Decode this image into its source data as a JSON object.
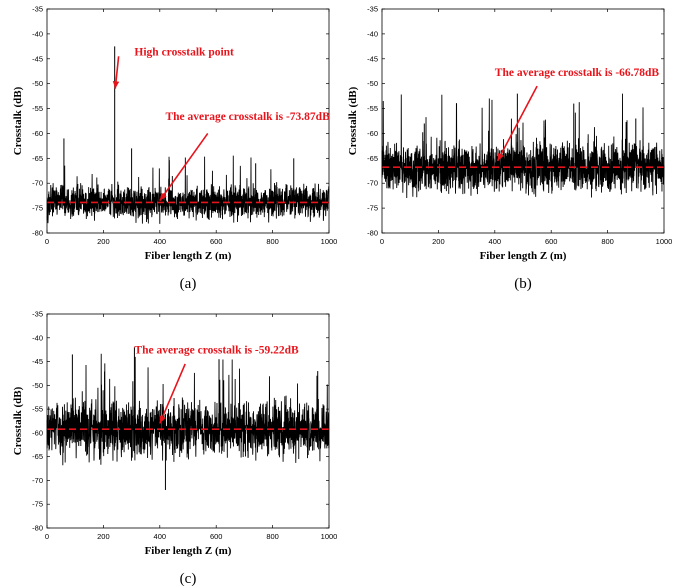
{
  "chart_data": [
    {
      "id": "a",
      "type": "line",
      "panel_label": "(a)",
      "xlabel": "Fiber length Z (m)",
      "ylabel": "Crosstalk (dB)",
      "xlim": [
        0,
        1000
      ],
      "ylim": [
        -80,
        -35
      ],
      "xticks": [
        0,
        200,
        400,
        600,
        800,
        1000
      ],
      "yticks": [
        -35,
        -40,
        -45,
        -50,
        -55,
        -60,
        -65,
        -70,
        -75,
        -80
      ],
      "noise": {
        "mean": -73.87,
        "spread": 3.4,
        "min_clip": -79.5
      },
      "spikes": [
        {
          "x": 240,
          "y": -42.5
        },
        {
          "x": 60,
          "y": -61
        },
        {
          "x": 300,
          "y": -63
        },
        {
          "x": 875,
          "y": -65
        },
        {
          "x": 740,
          "y": -66
        }
      ],
      "average": -73.87,
      "annotations": [
        {
          "text": "High crosstalk point",
          "tx": 310,
          "ty": -44.3,
          "ax": 254,
          "ay": -44.5,
          "bx": 242,
          "by": -51
        },
        {
          "text": "The average crosstalk is -73.87dB",
          "tx": 420,
          "ty": -57.3,
          "ax": 570,
          "ay": -60,
          "bx": 400,
          "by": -73.5
        }
      ]
    },
    {
      "id": "b",
      "type": "line",
      "panel_label": "(b)",
      "xlabel": "Fiber length Z (m)",
      "ylabel": "Crosstalk (dB)",
      "xlim": [
        0,
        1000
      ],
      "ylim": [
        -80,
        -35
      ],
      "xticks": [
        0,
        200,
        400,
        600,
        800,
        1000
      ],
      "yticks": [
        -35,
        -40,
        -45,
        -50,
        -55,
        -60,
        -65,
        -70,
        -75,
        -80
      ],
      "noise": {
        "mean": -66.78,
        "spread": 5.2,
        "min_clip": -79
      },
      "spikes": [
        {
          "x": 480,
          "y": -52
        },
        {
          "x": 680,
          "y": -54
        },
        {
          "x": 150,
          "y": -58
        },
        {
          "x": 900,
          "y": -57
        }
      ],
      "average": -66.78,
      "annotations": [
        {
          "text": "The average crosstalk is -66.78dB",
          "tx": 400,
          "ty": -48.5,
          "ax": 550,
          "ay": -50.5,
          "bx": 410,
          "by": -65.5
        }
      ]
    },
    {
      "id": "c",
      "type": "line",
      "panel_label": "(c)",
      "xlabel": "Fiber length Z (m)",
      "ylabel": "Crosstalk (dB)",
      "xlim": [
        0,
        1000
      ],
      "ylim": [
        -80,
        -35
      ],
      "xticks": [
        0,
        200,
        400,
        600,
        800,
        1000
      ],
      "yticks": [
        -35,
        -40,
        -45,
        -50,
        -55,
        -60,
        -65,
        -70,
        -75,
        -80
      ],
      "noise": {
        "mean": -59.22,
        "spread": 6.2,
        "min_clip": -78
      },
      "spikes": [
        {
          "x": 90,
          "y": -43.5
        },
        {
          "x": 310,
          "y": -42
        },
        {
          "x": 610,
          "y": -44.5
        },
        {
          "x": 960,
          "y": -47
        },
        {
          "x": 420,
          "y": -72
        }
      ],
      "average": -59.22,
      "annotations": [
        {
          "text": "The average crosstalk is -59.22dB",
          "tx": 310,
          "ty": -43.3,
          "ax": 490,
          "ay": -45.5,
          "bx": 400,
          "by": -58
        }
      ]
    }
  ]
}
